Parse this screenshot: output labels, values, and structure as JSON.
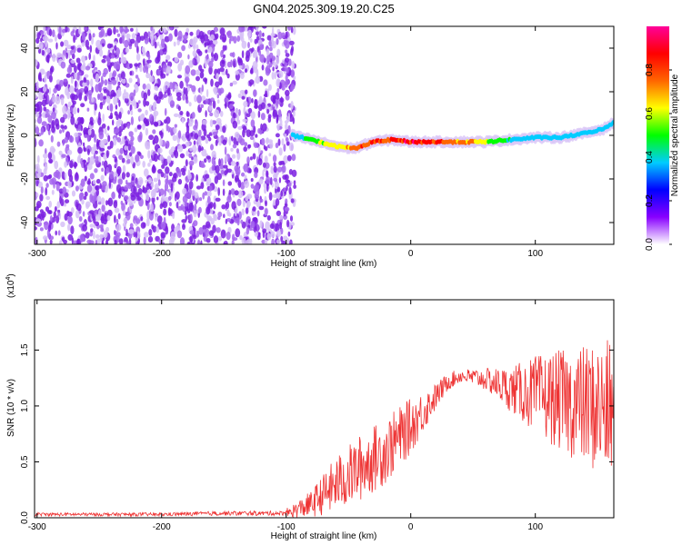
{
  "chart_data": [
    {
      "type": "heatmap",
      "title": "GN04.2025.309.19.20.C25",
      "xlabel": "Height of straight line (km)",
      "ylabel": "Frequency (Hz)",
      "xlim": [
        -302,
        163
      ],
      "ylim": [
        -50,
        50
      ],
      "xticks": [
        -300,
        -200,
        -100,
        0,
        100
      ],
      "yticks": [
        40,
        20,
        0,
        -20,
        -40
      ],
      "xtick_labels": [
        "-300",
        "-200",
        "-100",
        "0",
        "100"
      ],
      "ytick_labels": [
        "40",
        "20",
        "0",
        "-20",
        "-40"
      ],
      "noise_region_x": [
        -302,
        -93
      ],
      "signal_ridge": {
        "x": [
          -95,
          -80,
          -60,
          -45,
          -30,
          -15,
          0,
          20,
          40,
          60,
          80,
          100,
          120,
          140,
          155,
          163
        ],
        "freq": [
          0,
          -2,
          -5,
          -6,
          -3,
          -2,
          -3,
          -3,
          -3,
          -3,
          -2,
          -1,
          -1,
          1,
          3,
          6
        ]
      },
      "colorbar": {
        "label": "Normalized spectral amplitude",
        "range": [
          0,
          1
        ],
        "ticks": [
          0.0,
          0.2,
          0.4,
          0.6,
          0.8
        ],
        "tick_labels": [
          "0.0",
          "0.2",
          "0.4",
          "0.6",
          "0.8"
        ],
        "colors": [
          "#ffffff",
          "#8800ff",
          "#0000ff",
          "#00ccff",
          "#00ff00",
          "#ffff00",
          "#ff6600",
          "#ff0000",
          "#ff0099"
        ]
      }
    },
    {
      "type": "line",
      "xlabel": "Height of straight line (km)",
      "ylabel": "SNR (10 * v/v)",
      "y_scale_label": "(x10",
      "y_scale_exp": "4",
      "y_scale_close": ")",
      "xlim": [
        -302,
        163
      ],
      "ylim": [
        0,
        1.95
      ],
      "xticks": [
        -300,
        -200,
        -100,
        0,
        100
      ],
      "yticks": [
        0.0,
        0.5,
        1.0,
        1.5
      ],
      "xtick_labels": [
        "-300",
        "-200",
        "-100",
        "0",
        "100"
      ],
      "ytick_labels": [
        "0.0",
        "0.5",
        "1.0",
        "1.5"
      ],
      "series": [
        {
          "name": "SNR",
          "color": "#ee3333",
          "x": [
            -302,
            -250,
            -200,
            -150,
            -100,
            -80,
            -60,
            -40,
            -20,
            0,
            20,
            30,
            40,
            60,
            80,
            100,
            120,
            140,
            163
          ],
          "baseline": [
            0.03,
            0.03,
            0.03,
            0.04,
            0.04,
            0.12,
            0.3,
            0.45,
            0.6,
            0.82,
            1.08,
            1.22,
            1.27,
            1.24,
            1.15,
            1.1,
            1.05,
            1.0,
            0.95
          ],
          "noise": [
            0.03,
            0.03,
            0.03,
            0.04,
            0.04,
            0.12,
            0.25,
            0.3,
            0.3,
            0.25,
            0.12,
            0.08,
            0.06,
            0.1,
            0.2,
            0.35,
            0.45,
            0.55,
            0.65
          ]
        }
      ]
    }
  ]
}
